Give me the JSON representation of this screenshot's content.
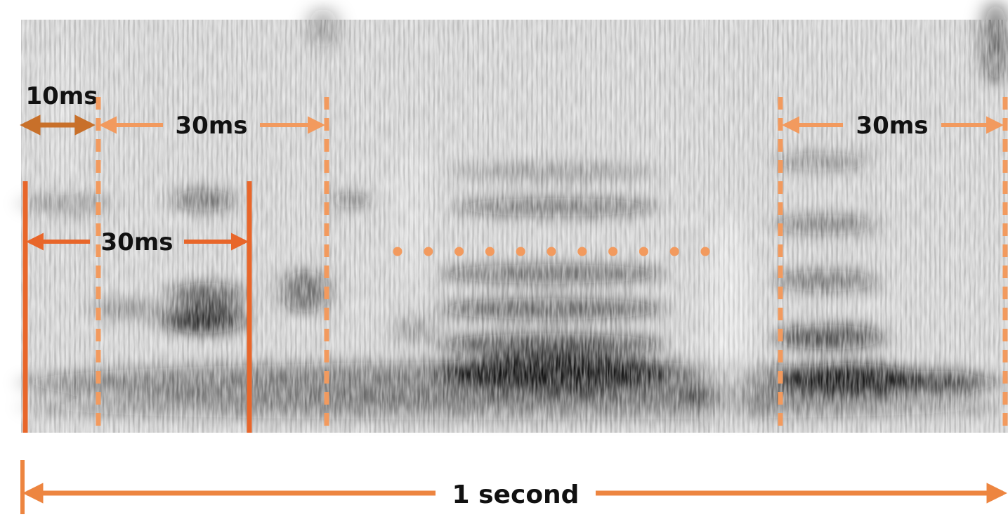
{
  "figure": {
    "description_kind": "spectrogram-framing-diagram",
    "colors": {
      "first_window": "#e8662a",
      "dashed_window": "#f29a5e",
      "step_arrow": "#c8702a",
      "span_arrow": "#ed8540",
      "spectrogram_dark": "#111111",
      "spectrogram_light": "#f0f0f0"
    },
    "labels": {
      "step": "10ms",
      "window_first": "30ms",
      "window_second": "30ms",
      "window_last": "30ms",
      "total_span": "1 second"
    }
  }
}
